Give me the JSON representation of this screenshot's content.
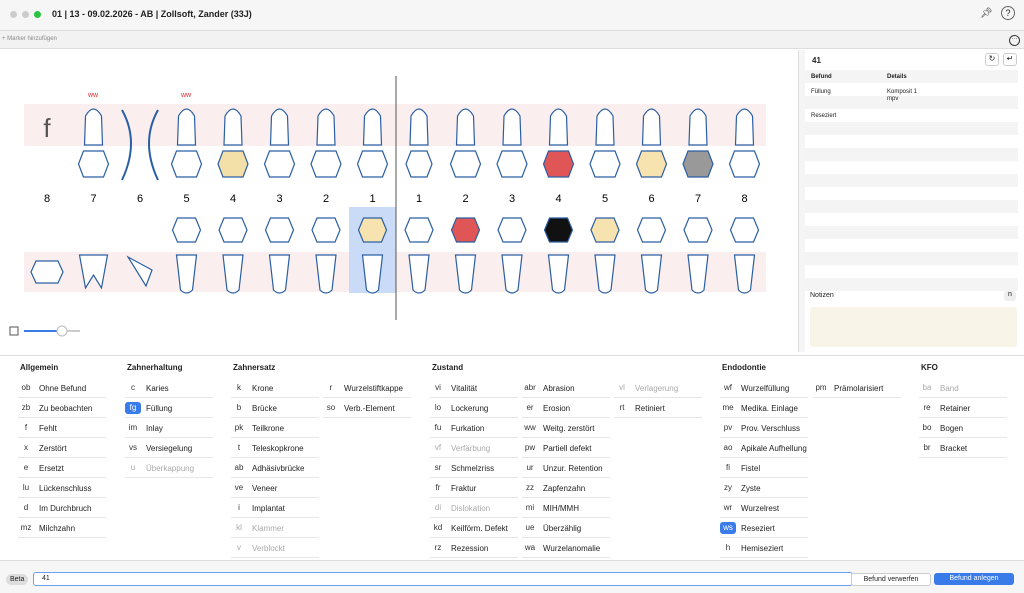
{
  "window": {
    "title": "01 | 13 - 09.02.2026 - AB | Zollsoft, Zander (33J)",
    "help": "?"
  },
  "toolbar": {
    "marker": "+ Marker hinzufügen"
  },
  "tooth_chart": {
    "annotations": [
      "f",
      "ww",
      "ww"
    ],
    "upper_numbers": [
      8,
      7,
      6,
      5,
      4,
      3,
      2,
      1,
      1,
      2,
      3,
      4,
      5,
      6,
      7,
      8
    ],
    "lower_numbers": [
      1,
      2,
      3,
      4,
      5,
      6,
      7,
      8
    ]
  },
  "detail_panel": {
    "tooth": "41",
    "headers": [
      "Befund",
      "Details"
    ],
    "rows": [
      [
        "Füllung",
        "Komposit 1",
        "mpv"
      ],
      [
        "Reseziert"
      ]
    ],
    "notes_title": "Notizen",
    "notes_key": "n"
  },
  "groups": [
    {
      "title": "Allgemein",
      "columns": [
        [
          {
            "code": "ob",
            "label": "Ohne Befund"
          },
          {
            "code": "zb",
            "label": "Zu beobachten"
          },
          {
            "code": "f",
            "label": "Fehlt"
          },
          {
            "code": "x",
            "label": "Zerstört"
          },
          {
            "code": "e",
            "label": "Ersetzt"
          },
          {
            "code": "lu",
            "label": "Lückenschluss"
          },
          {
            "code": "d",
            "label": "Im Durchbruch"
          },
          {
            "code": "mz",
            "label": "Milchzahn"
          }
        ]
      ]
    },
    {
      "title": "Zahnerhaltung",
      "columns": [
        [
          {
            "code": "c",
            "label": "Karies"
          },
          {
            "code": "fg",
            "label": "Füllung",
            "selected": true
          },
          {
            "code": "im",
            "label": "Inlay"
          },
          {
            "code": "vs",
            "label": "Versiegelung"
          },
          {
            "code": "u",
            "label": "Überkappung",
            "disabled": true
          }
        ]
      ]
    },
    {
      "title": "Zahnersatz",
      "columns": [
        [
          {
            "code": "k",
            "label": "Krone"
          },
          {
            "code": "b",
            "label": "Brücke"
          },
          {
            "code": "pk",
            "label": "Teilkrone"
          },
          {
            "code": "t",
            "label": "Teleskopkrone"
          },
          {
            "code": "ab",
            "label": "Adhäsivbrücke"
          },
          {
            "code": "ve",
            "label": "Veneer"
          },
          {
            "code": "i",
            "label": "Implantat"
          },
          {
            "code": "kl",
            "label": "Klammer",
            "disabled": true
          },
          {
            "code": "v",
            "label": "Verblockt",
            "disabled": true
          }
        ],
        [
          {
            "code": "r",
            "label": "Wurzelstiftkappe"
          },
          {
            "code": "so",
            "label": "Verb.-Element"
          }
        ]
      ]
    },
    {
      "title": "Zustand",
      "columns": [
        [
          {
            "code": "vi",
            "label": "Vitalität"
          },
          {
            "code": "lo",
            "label": "Lockerung"
          },
          {
            "code": "fu",
            "label": "Furkation"
          },
          {
            "code": "vf",
            "label": "Verfärbung",
            "disabled": true
          },
          {
            "code": "sr",
            "label": "Schmelzriss"
          },
          {
            "code": "fr",
            "label": "Fraktur"
          },
          {
            "code": "di",
            "label": "Dislokation",
            "disabled": true
          },
          {
            "code": "kd",
            "label": "Keilförm. Defekt"
          },
          {
            "code": "rz",
            "label": "Rezession"
          }
        ],
        [
          {
            "code": "abr",
            "label": "Abrasion"
          },
          {
            "code": "er",
            "label": "Erosion"
          },
          {
            "code": "ww",
            "label": "Weitg. zerstört"
          },
          {
            "code": "pw",
            "label": "Partiell defekt"
          },
          {
            "code": "ur",
            "label": "Unzur. Retention"
          },
          {
            "code": "zz",
            "label": "Zapfenzahn"
          },
          {
            "code": "mi",
            "label": "MIH/MMH"
          },
          {
            "code": "ue",
            "label": "Überzählig"
          },
          {
            "code": "wa",
            "label": "Wurzelanomalie"
          }
        ],
        [
          {
            "code": "vl",
            "label": "Verlagerung",
            "disabled": true
          },
          {
            "code": "rt",
            "label": "Retiniert"
          }
        ]
      ]
    },
    {
      "title": "Endodontie",
      "columns": [
        [
          {
            "code": "wf",
            "label": "Wurzelfüllung"
          },
          {
            "code": "me",
            "label": "Medika. Einlage"
          },
          {
            "code": "pv",
            "label": "Prov. Verschluss"
          },
          {
            "code": "ao",
            "label": "Apikale Aufhellung"
          },
          {
            "code": "fi",
            "label": "Fistel"
          },
          {
            "code": "zy",
            "label": "Zyste"
          },
          {
            "code": "wr",
            "label": "Wurzelrest"
          },
          {
            "code": "ws",
            "label": "Reseziert",
            "selected": true
          },
          {
            "code": "h",
            "label": "Hemiseziert"
          }
        ],
        [
          {
            "code": "pm",
            "label": "Prämolarisiert"
          }
        ]
      ]
    },
    {
      "title": "KFO",
      "columns": [
        [
          {
            "code": "ba",
            "label": "Band",
            "disabled": true
          },
          {
            "code": "re",
            "label": "Retainer"
          },
          {
            "code": "bo",
            "label": "Bogen"
          },
          {
            "code": "br",
            "label": "Bracket"
          }
        ]
      ]
    }
  ],
  "footer": {
    "beta": "Beta",
    "input": "41",
    "discard": "Befund verwerfen",
    "create": "Befund anlegen"
  }
}
